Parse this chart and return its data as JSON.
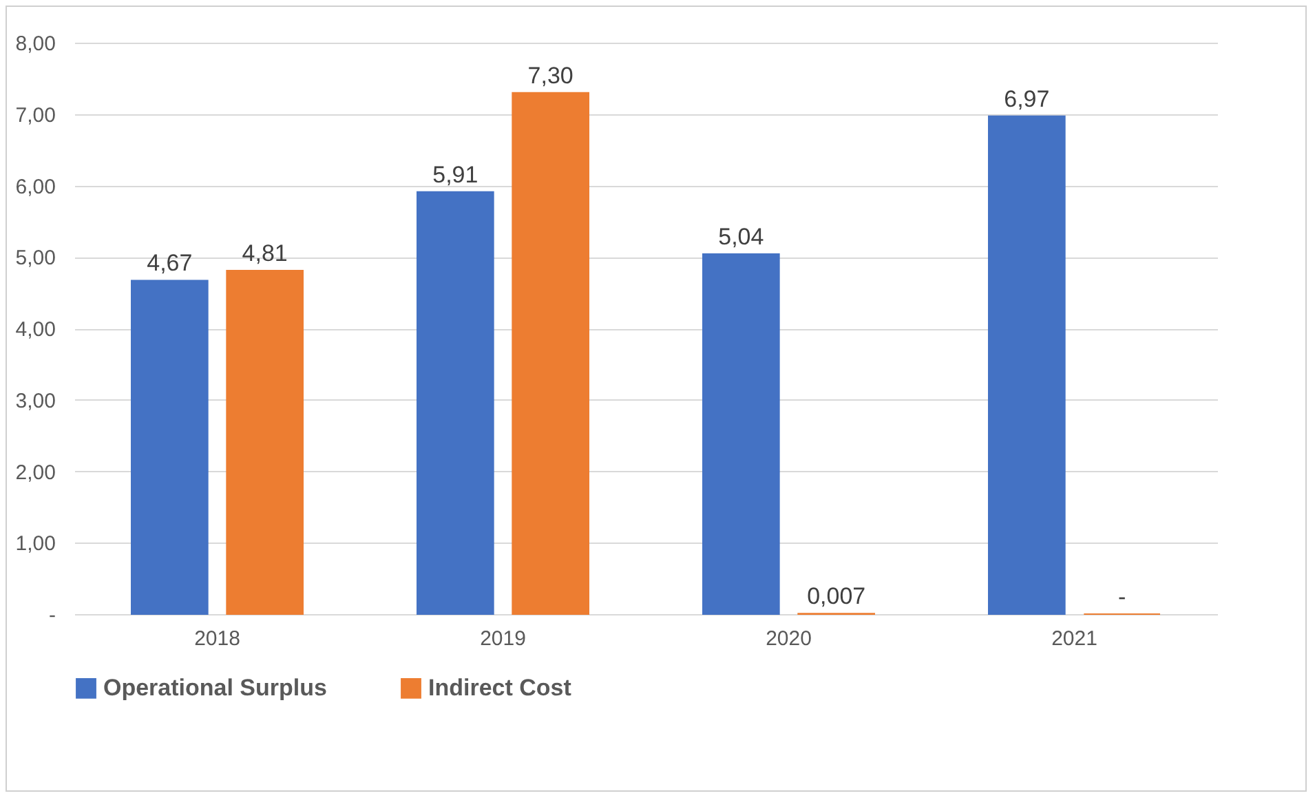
{
  "chart_data": {
    "type": "bar",
    "categories": [
      "2018",
      "2019",
      "2020",
      "2021"
    ],
    "series": [
      {
        "name": "Operational Surplus",
        "color": "#4472c4",
        "values": [
          4.67,
          5.91,
          5.04,
          6.97
        ],
        "value_labels": [
          "4,67",
          "5,91",
          "5,04",
          "6,97"
        ]
      },
      {
        "name": "Indirect Cost",
        "color": "#ed7d31",
        "values": [
          4.81,
          7.3,
          0.007,
          0
        ],
        "value_labels": [
          "4,81",
          "7,30",
          "0,007",
          "-"
        ]
      }
    ],
    "ylim": [
      0,
      8
    ],
    "yticks": [
      {
        "value": 0,
        "label": "-"
      },
      {
        "value": 1,
        "label": "1,00"
      },
      {
        "value": 2,
        "label": "2,00"
      },
      {
        "value": 3,
        "label": "3,00"
      },
      {
        "value": 4,
        "label": "4,00"
      },
      {
        "value": 5,
        "label": "5,00"
      },
      {
        "value": 6,
        "label": "6,00"
      },
      {
        "value": 7,
        "label": "7,00"
      },
      {
        "value": 8,
        "label": "8,00"
      }
    ],
    "grid": "y",
    "legend": "bottom"
  }
}
